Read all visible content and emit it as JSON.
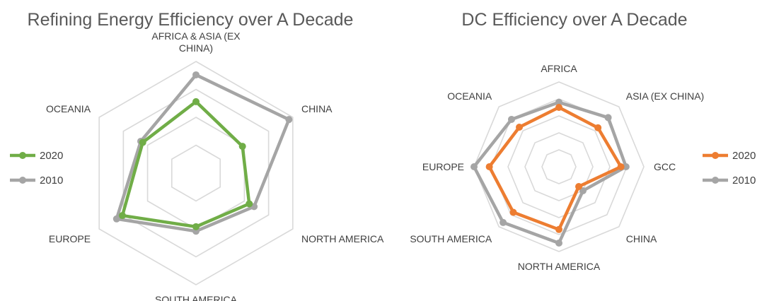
{
  "chart_data": [
    {
      "type": "radar",
      "title": "Refining Energy Efficiency over A Decade",
      "categories": [
        "AFRICA & ASIA (EX CHINA)",
        "CHINA",
        "NORTH AMERICA",
        "SOUTH AMERICA",
        "EUROPE",
        "OCEANIA"
      ],
      "category_lines": [
        [
          "AFRICA & ASIA (EX",
          "CHINA)"
        ],
        [
          "CHINA"
        ],
        [
          "NORTH AMERICA"
        ],
        [
          "SOUTH AMERICA"
        ],
        [
          "EUROPE"
        ],
        [
          "OCEANIA"
        ]
      ],
      "rlim": [
        0,
        1
      ],
      "grid_rings": 4,
      "series": [
        {
          "name": "2020",
          "color": "#70AD47",
          "values": [
            0.64,
            0.48,
            0.55,
            0.48,
            0.76,
            0.55
          ]
        },
        {
          "name": "2010",
          "color": "#A5A5A5",
          "values": [
            0.88,
            0.96,
            0.6,
            0.52,
            0.82,
            0.57
          ]
        }
      ],
      "legend": {
        "position": "left",
        "items": [
          "2020",
          "2010"
        ]
      }
    },
    {
      "type": "radar",
      "title": "DC Efficiency over A Decade",
      "categories": [
        "AFRICA",
        "ASIA (EX CHINA)",
        "GCC",
        "CHINA",
        "NORTH AMERICA",
        "SOUTH AMERICA",
        "EUROPE",
        "OCEANIA"
      ],
      "category_lines": [
        [
          "AFRICA"
        ],
        [
          "ASIA (EX CHINA)"
        ],
        [
          "GCC"
        ],
        [
          "CHINA"
        ],
        [
          "NORTH AMERICA"
        ],
        [
          "SOUTH AMERICA"
        ],
        [
          "EUROPE"
        ],
        [
          "OCEANIA"
        ]
      ],
      "rlim": [
        0,
        1
      ],
      "grid_rings": 5,
      "series": [
        {
          "name": "2020",
          "color": "#ED7D31",
          "values": [
            0.7,
            0.65,
            0.73,
            0.33,
            0.74,
            0.76,
            0.82,
            0.66
          ]
        },
        {
          "name": "2010",
          "color": "#A5A5A5",
          "values": [
            0.76,
            0.82,
            0.79,
            0.4,
            0.9,
            0.93,
            1.0,
            0.79
          ]
        }
      ],
      "legend": {
        "position": "right",
        "items": [
          "2020",
          "2010"
        ]
      }
    }
  ]
}
